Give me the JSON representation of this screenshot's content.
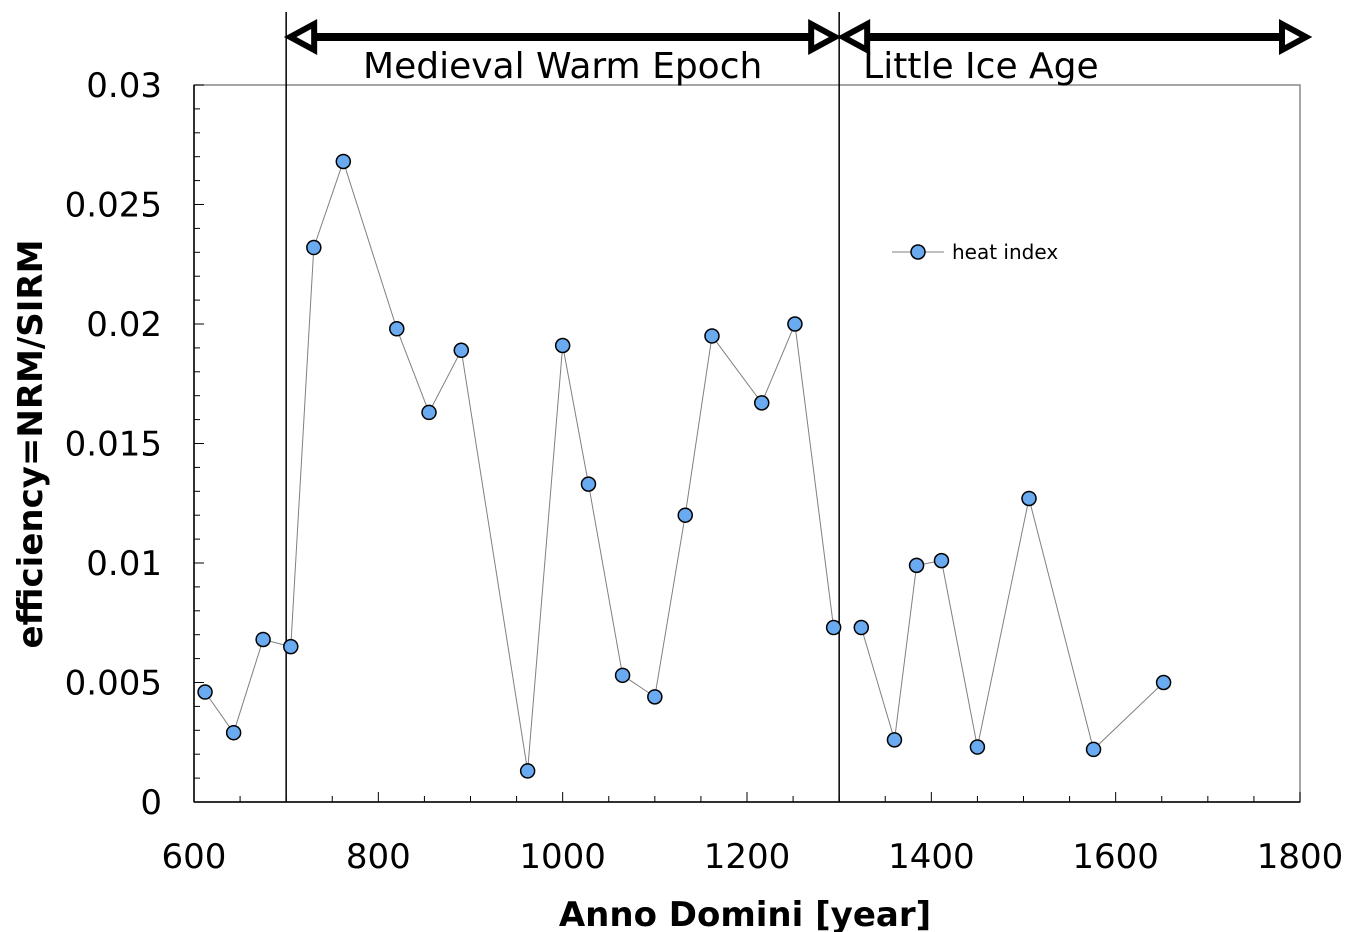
{
  "chart_data": {
    "type": "scatter",
    "title": "",
    "xlabel": "Anno Domini [year]",
    "ylabel": "efficiency=NRM/SIRM",
    "xlim": [
      600,
      1800
    ],
    "ylim": [
      0,
      0.03
    ],
    "x_ticks": [
      "600",
      "800",
      "1000",
      "1200",
      "1400",
      "1600",
      "1800"
    ],
    "y_ticks": [
      "0",
      "0.005",
      "0.01",
      "0.015",
      "0.02",
      "0.025",
      "0.03"
    ],
    "grid": false,
    "legend_position": "upper-right",
    "marker_color": "#6aaaf0",
    "line_color": "#808080",
    "series": [
      {
        "name": "heat index",
        "segments": [
          [
            [
              612,
              0.0046
            ],
            [
              643,
              0.0029
            ],
            [
              675,
              0.0068
            ],
            [
              705,
              0.0065
            ],
            [
              730,
              0.0232
            ],
            [
              762,
              0.0268
            ],
            [
              820,
              0.0198
            ],
            [
              855,
              0.0163
            ],
            [
              890,
              0.0189
            ],
            [
              962,
              0.0013
            ],
            [
              1000,
              0.0191
            ],
            [
              1028,
              0.0133
            ],
            [
              1065,
              0.0053
            ],
            [
              1100,
              0.0044
            ],
            [
              1133,
              0.012
            ],
            [
              1162,
              0.0195
            ],
            [
              1216,
              0.0167
            ],
            [
              1252,
              0.02
            ],
            [
              1294,
              0.0073
            ]
          ],
          [
            [
              1324,
              0.0073
            ],
            [
              1360,
              0.0026
            ],
            [
              1384,
              0.0099
            ],
            [
              1411,
              0.0101
            ],
            [
              1450,
              0.0023
            ],
            [
              1506,
              0.0127
            ],
            [
              1576,
              0.0022
            ],
            [
              1652,
              0.005
            ]
          ]
        ]
      }
    ],
    "periods": [
      {
        "label": "Medieval Warm Epoch",
        "start": 700,
        "end": 1300
      },
      {
        "label": "Little Ice Age",
        "start": 1300,
        "end": 1800
      }
    ]
  }
}
